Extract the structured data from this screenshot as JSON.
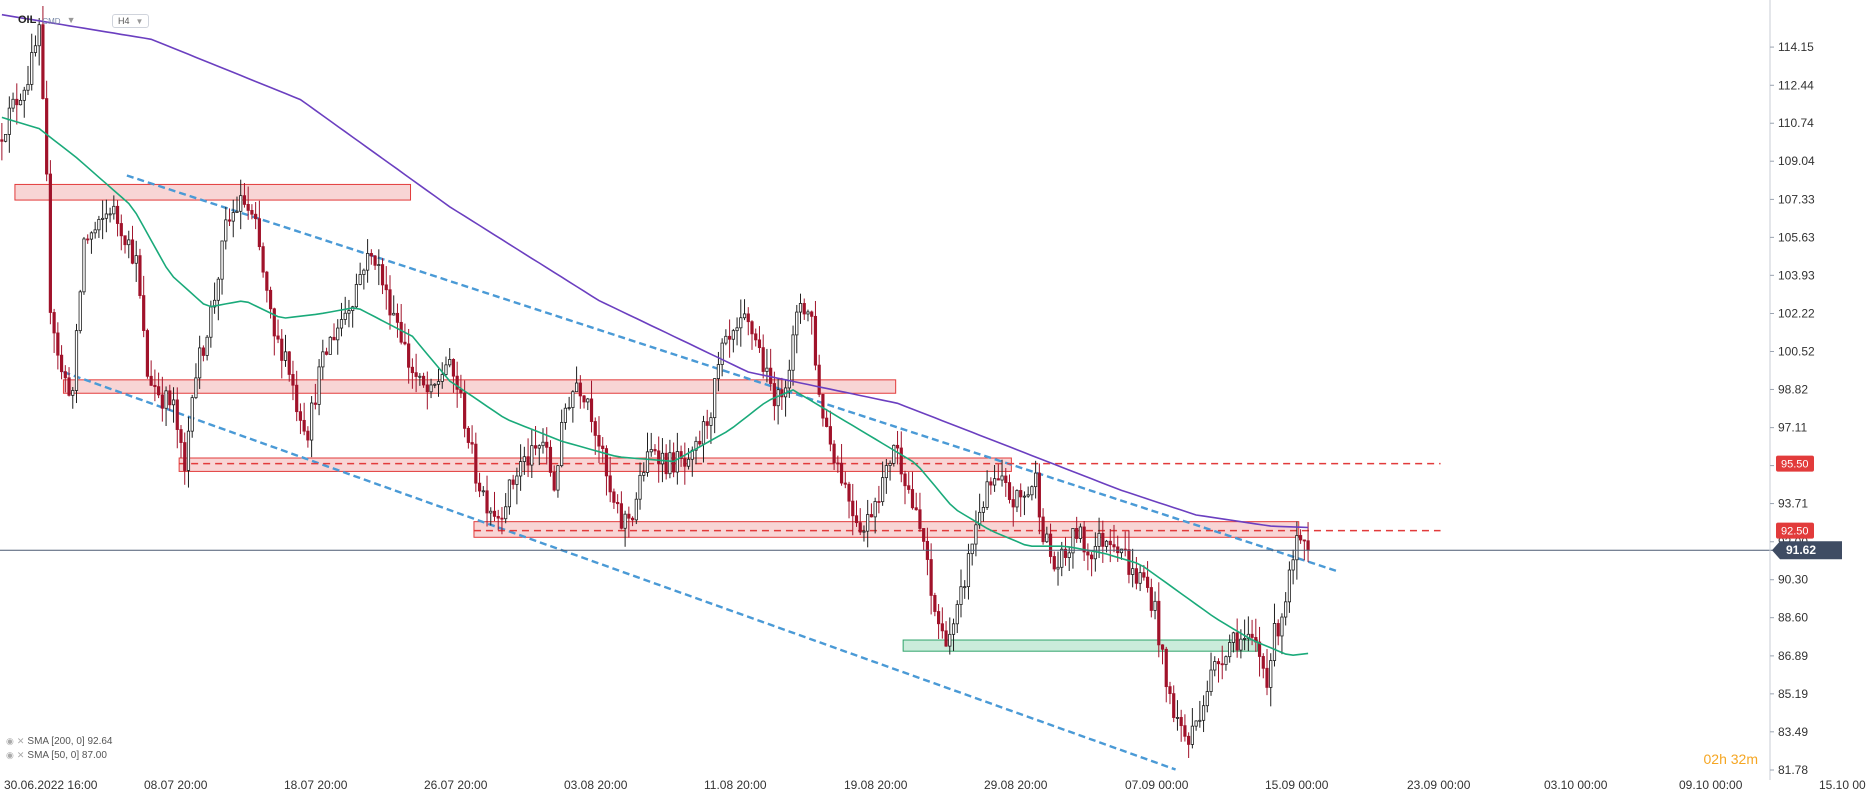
{
  "header": {
    "symbol": "OIL",
    "symbol_type": "CMD",
    "timeframe": "H4"
  },
  "indicators": [
    {
      "label": "SMA [200, 0] 92.64",
      "color": "#6b3fc0"
    },
    {
      "label": "SMA [50, 0] 87.00",
      "color": "#1aaa7a"
    }
  ],
  "timer": "02h 32m",
  "colors": {
    "up": "#1f1f1f",
    "down": "#a0122a",
    "sma200": "#6b3fc0",
    "sma50": "#1aaa7a",
    "trend": "#4a9ad6",
    "resistance_fill": "#f6c7c7",
    "resistance_edge": "#e23b3b",
    "support_fill": "#b9e5cf",
    "support_edge": "#2fa46b",
    "level_dash": "#e23b3b",
    "price_line": "#4b5a72"
  },
  "chart_data": {
    "type": "candlestick",
    "symbol": "OIL",
    "interval": "H4",
    "ylim": [
      81.78,
      115.9
    ],
    "y_ticks": [
      "114.15",
      "112.44",
      "110.74",
      "109.04",
      "107.33",
      "105.63",
      "103.93",
      "102.22",
      "100.52",
      "98.82",
      "97.11",
      "95.41",
      "93.71",
      "92.00",
      "90.30",
      "88.60",
      "86.89",
      "85.19",
      "83.49",
      "81.78"
    ],
    "x_ticks": [
      "30.06.2022 16:00",
      "08.07 20:00",
      "18.07 20:00",
      "26.07 20:00",
      "03.08 20:00",
      "11.08 20:00",
      "19.08 20:00",
      "29.08 20:00",
      "07.09 00:00",
      "15.09 00:00",
      "23.09 00:00",
      "03.10 00:00",
      "09.10 00:00",
      "15.10 00:00"
    ],
    "bars_total": 500,
    "last_bar": 350,
    "current_price": 91.62,
    "price_labels": [
      {
        "value": 95.5,
        "text": "95.50"
      },
      {
        "value": 92.5,
        "text": "92.50"
      }
    ],
    "waypoints": [
      [
        0,
        110.0
      ],
      [
        4,
        111.5
      ],
      [
        8,
        112.8
      ],
      [
        11,
        114.7
      ],
      [
        13,
        108.0
      ],
      [
        14,
        102.7
      ],
      [
        17,
        99.5
      ],
      [
        20,
        98.7
      ],
      [
        23,
        105.5
      ],
      [
        27,
        106.0
      ],
      [
        30,
        107.0
      ],
      [
        34,
        105.8
      ],
      [
        37,
        104.5
      ],
      [
        40,
        99.5
      ],
      [
        44,
        98.5
      ],
      [
        47,
        98.0
      ],
      [
        50,
        95.0
      ],
      [
        52,
        99.0
      ],
      [
        55,
        100.8
      ],
      [
        58,
        103.0
      ],
      [
        61,
        106.0
      ],
      [
        64,
        107.0
      ],
      [
        66,
        107.2
      ],
      [
        69,
        106.0
      ],
      [
        72,
        103.0
      ],
      [
        74,
        101.0
      ],
      [
        77,
        100.5
      ],
      [
        80,
        98.2
      ],
      [
        83,
        97.0
      ],
      [
        86,
        99.5
      ],
      [
        89,
        101.0
      ],
      [
        92,
        102.0
      ],
      [
        95,
        103.0
      ],
      [
        98,
        104.5
      ],
      [
        101,
        104.8
      ],
      [
        104,
        103.0
      ],
      [
        107,
        102.0
      ],
      [
        110,
        100.0
      ],
      [
        113,
        99.0
      ],
      [
        116,
        98.5
      ],
      [
        120,
        100.0
      ],
      [
        123,
        99.0
      ],
      [
        125,
        97.5
      ],
      [
        128,
        95.0
      ],
      [
        131,
        93.8
      ],
      [
        134,
        93.2
      ],
      [
        137,
        94.3
      ],
      [
        140,
        95.5
      ],
      [
        143,
        95.8
      ],
      [
        146,
        96.5
      ],
      [
        149,
        94.5
      ],
      [
        152,
        98.0
      ],
      [
        155,
        99.2
      ],
      [
        158,
        98.5
      ],
      [
        161,
        96.5
      ],
      [
        164,
        94.0
      ],
      [
        167,
        92.8
      ],
      [
        170,
        93.3
      ],
      [
        173,
        95.3
      ],
      [
        176,
        96.3
      ],
      [
        179,
        95.5
      ],
      [
        182,
        95.6
      ],
      [
        185,
        95.2
      ],
      [
        188,
        96.5
      ],
      [
        191,
        98.0
      ],
      [
        194,
        100.5
      ],
      [
        197,
        101.0
      ],
      [
        200,
        101.8
      ],
      [
        203,
        101.2
      ],
      [
        206,
        99.3
      ],
      [
        209,
        98.3
      ],
      [
        212,
        100.0
      ],
      [
        215,
        102.8
      ],
      [
        218,
        102.0
      ],
      [
        220,
        98.5
      ],
      [
        223,
        96.5
      ],
      [
        226,
        95.0
      ],
      [
        229,
        93.5
      ],
      [
        232,
        92.5
      ],
      [
        235,
        94.0
      ],
      [
        238,
        95.0
      ],
      [
        240,
        96.5
      ],
      [
        243,
        95.0
      ],
      [
        246,
        93.0
      ],
      [
        248,
        92.0
      ],
      [
        250,
        89.5
      ],
      [
        253,
        87.8
      ],
      [
        256,
        88.0
      ],
      [
        258,
        89.5
      ],
      [
        261,
        92.0
      ],
      [
        263,
        93.5
      ],
      [
        266,
        94.5
      ],
      [
        269,
        94.5
      ],
      [
        272,
        93.8
      ],
      [
        275,
        94.0
      ],
      [
        278,
        94.8
      ],
      [
        280,
        92.5
      ],
      [
        283,
        90.8
      ],
      [
        286,
        91.3
      ],
      [
        289,
        92.5
      ],
      [
        292,
        91.5
      ],
      [
        295,
        92.0
      ],
      [
        298,
        92.3
      ],
      [
        301,
        91.8
      ],
      [
        304,
        90.5
      ],
      [
        307,
        90.3
      ],
      [
        310,
        89.0
      ],
      [
        313,
        85.5
      ],
      [
        316,
        84.0
      ],
      [
        319,
        83.0
      ],
      [
        322,
        84.5
      ],
      [
        325,
        86.0
      ],
      [
        328,
        87.0
      ],
      [
        331,
        87.8
      ],
      [
        334,
        87.5
      ],
      [
        337,
        87.3
      ],
      [
        340,
        86.0
      ],
      [
        342,
        87.8
      ],
      [
        344,
        88.8
      ],
      [
        346,
        90.3
      ],
      [
        348,
        91.8
      ],
      [
        350,
        91.62
      ]
    ],
    "sma200": [
      [
        0,
        115.6
      ],
      [
        40,
        114.5
      ],
      [
        80,
        111.8
      ],
      [
        120,
        107.0
      ],
      [
        160,
        102.8
      ],
      [
        200,
        99.6
      ],
      [
        240,
        98.2
      ],
      [
        280,
        95.6
      ],
      [
        300,
        94.3
      ],
      [
        320,
        93.2
      ],
      [
        340,
        92.7
      ],
      [
        350,
        92.64
      ]
    ],
    "sma50": [
      [
        0,
        111.0
      ],
      [
        10,
        110.5
      ],
      [
        20,
        109.2
      ],
      [
        35,
        107.0
      ],
      [
        45,
        104.0
      ],
      [
        55,
        102.5
      ],
      [
        65,
        102.8
      ],
      [
        75,
        102.0
      ],
      [
        85,
        102.2
      ],
      [
        95,
        102.5
      ],
      [
        110,
        101.2
      ],
      [
        120,
        99.2
      ],
      [
        135,
        97.5
      ],
      [
        150,
        96.5
      ],
      [
        165,
        95.8
      ],
      [
        180,
        95.6
      ],
      [
        195,
        97.0
      ],
      [
        205,
        98.3
      ],
      [
        212,
        98.8
      ],
      [
        222,
        97.8
      ],
      [
        235,
        96.5
      ],
      [
        245,
        95.5
      ],
      [
        255,
        93.5
      ],
      [
        265,
        92.5
      ],
      [
        275,
        91.8
      ],
      [
        285,
        91.8
      ],
      [
        295,
        91.5
      ],
      [
        305,
        91.0
      ],
      [
        315,
        89.8
      ],
      [
        325,
        88.6
      ],
      [
        335,
        87.6
      ],
      [
        345,
        86.9
      ],
      [
        350,
        87.0
      ]
    ],
    "trendlines": [
      {
        "from": [
          34,
          108.4
        ],
        "to": [
          358,
          90.7
        ]
      },
      {
        "from": [
          17,
          99.6
        ],
        "to": [
          315,
          81.8
        ]
      }
    ],
    "zones": [
      {
        "kind": "resistance",
        "x0": 4,
        "x1": 110,
        "y0": 107.3,
        "y1": 108.0
      },
      {
        "kind": "resistance",
        "x0": 17,
        "x1": 240,
        "y0": 98.65,
        "y1": 99.25
      },
      {
        "kind": "resistance",
        "x0": 48,
        "x1": 271,
        "y0": 95.15,
        "y1": 95.75
      },
      {
        "kind": "resistance",
        "x0": 127,
        "x1": 348,
        "y0": 92.2,
        "y1": 92.9
      },
      {
        "kind": "support",
        "x0": 242,
        "x1": 337,
        "y0": 87.1,
        "y1": 87.6
      }
    ],
    "dashed_levels": [
      {
        "value": 95.5,
        "x0": 48,
        "x1": 386
      },
      {
        "value": 92.5,
        "x0": 127,
        "x1": 386
      }
    ]
  }
}
